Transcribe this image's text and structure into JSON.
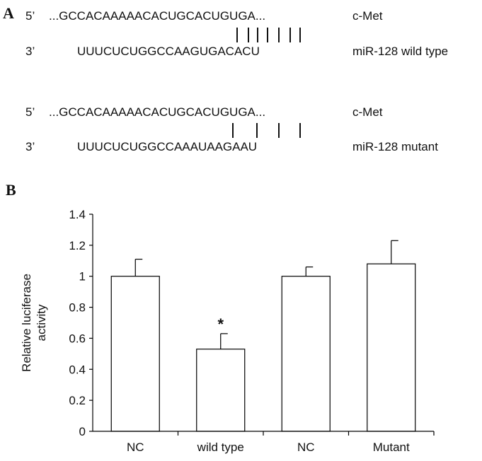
{
  "panel_a": {
    "label": "A",
    "wild_type": {
      "target_prime": "5’",
      "target_seq": "...GCCACAAAAACACUGCACUGUGA...",
      "target_name": "c-Met",
      "mirna_prime": "3’",
      "mirna_seq": "UUUCUCUGGCCAAGUGACACU",
      "mirna_name": "miR-128 wild type"
    },
    "mutant": {
      "target_prime": "5’",
      "target_seq": "...GCCACAAAAACACUGCACUGUGA...",
      "target_name": "c-Met",
      "mirna_prime": "3’",
      "mirna_seq": "UUUCUCUGGCCAAAUAAGAAU",
      "mirna_name": "miR-128 mutant"
    }
  },
  "panel_b": {
    "label": "B"
  },
  "chart_data": {
    "type": "bar",
    "categories": [
      "NC",
      "wild type",
      "NC",
      "Mutant"
    ],
    "values": [
      1.0,
      0.53,
      1.0,
      1.08
    ],
    "errors": [
      0.11,
      0.1,
      0.06,
      0.15
    ],
    "significance": [
      "",
      "*",
      "",
      ""
    ],
    "ylabel": "Relative luciferase activity",
    "ylabel_lines": [
      "Relative luciferase",
      "activity"
    ],
    "xlabel": "",
    "ylim": [
      0,
      1.4
    ],
    "yticks": [
      "0",
      "0.2",
      "0.4",
      "0.6",
      "0.8",
      "1",
      "1.2",
      "1.4"
    ],
    "bar_fill": "#ffffff",
    "bar_stroke": "#000000",
    "grid": false
  }
}
